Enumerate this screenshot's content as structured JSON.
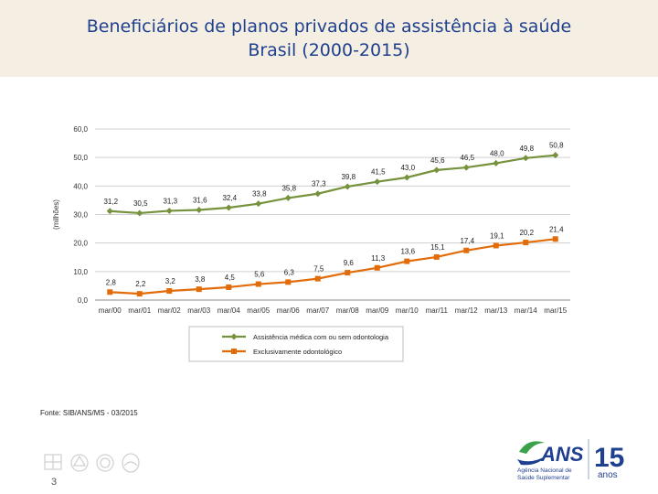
{
  "header": {
    "title_line1": "Beneficiários de planos privados de assistência à saúde",
    "title_line2": "Brasil (2000-2015)"
  },
  "chart_data": {
    "type": "line",
    "ylabel": "(milhões)",
    "ylim": [
      0,
      60
    ],
    "yticks": [
      0,
      10,
      20,
      30,
      40,
      50,
      60
    ],
    "ytick_labels": [
      "0,0",
      "10,0",
      "20,0",
      "30,0",
      "40,0",
      "50,0",
      "60,0"
    ],
    "grid": true,
    "categories": [
      "mar/00",
      "mar/01",
      "mar/02",
      "mar/03",
      "mar/04",
      "mar/05",
      "mar/06",
      "mar/07",
      "mar/08",
      "mar/09",
      "mar/10",
      "mar/11",
      "mar/12",
      "mar/13",
      "mar/14",
      "mar/15"
    ],
    "series": [
      {
        "name": "Assistência médica com ou sem odontologia",
        "color": "#76923c",
        "marker": "diamond",
        "values": [
          31.2,
          30.5,
          31.3,
          31.6,
          32.4,
          33.8,
          35.8,
          37.3,
          39.8,
          41.5,
          43.0,
          45.6,
          46.5,
          48.0,
          49.8,
          50.8
        ],
        "labels": [
          "31,2",
          "30,5",
          "31,3",
          "31,6",
          "32,4",
          "33,8",
          "35,8",
          "37,3",
          "39,8",
          "41,5",
          "43,0",
          "45,6",
          "46,5",
          "48,0",
          "49,8",
          "50,8"
        ]
      },
      {
        "name": "Exclusivamente odontológico",
        "color": "#e36c0a",
        "marker": "square",
        "values": [
          2.8,
          2.2,
          3.2,
          3.8,
          4.5,
          5.6,
          6.3,
          7.5,
          9.6,
          11.3,
          13.6,
          15.1,
          17.4,
          19.1,
          20.2,
          21.4
        ],
        "labels": [
          "2,8",
          "2,2",
          "3,2",
          "3,8",
          "4,5",
          "5,6",
          "6,3",
          "7,5",
          "9,6",
          "11,3",
          "13,6",
          "15,1",
          "17,4",
          "19,1",
          "20,2",
          "21,4"
        ]
      }
    ],
    "legend_position": "bottom"
  },
  "footer": {
    "source": "Fonte: SIB/ANS/MS - 03/2015",
    "page_number": "3",
    "logo_text": "ANS",
    "logo_subtitle_1": "Agência Nacional de",
    "logo_subtitle_2": "Saúde Suplementar",
    "anniversary_number": "15",
    "anniversary_word": "anos"
  },
  "colors": {
    "title": "#1f3f8f",
    "header_bg": "#f4efe2",
    "logo_green": "#3aa24a",
    "logo_blue": "#1f3f8f"
  }
}
